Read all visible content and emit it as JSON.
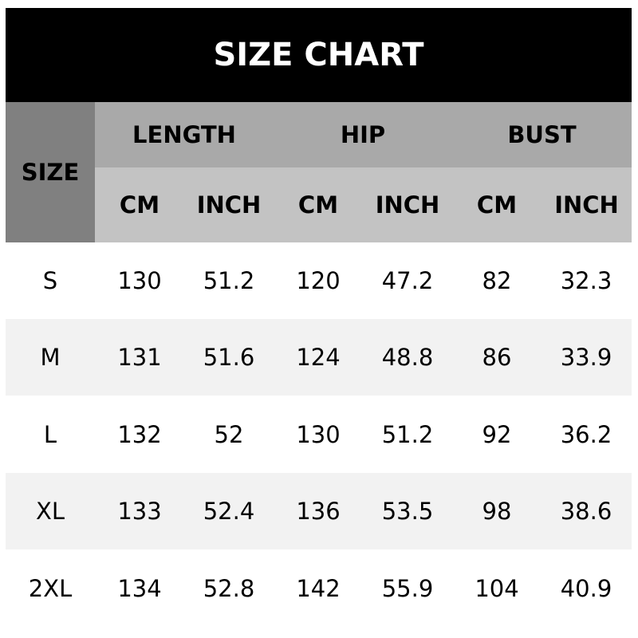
{
  "title": "SIZE CHART",
  "size_header": "SIZE",
  "groups": [
    "LENGTH",
    "HIP",
    "BUST"
  ],
  "units": [
    "CM",
    "INCH",
    "CM",
    "INCH",
    "CM",
    "INCH"
  ],
  "rows": [
    [
      "S",
      "130",
      "51.2",
      "120",
      "47.2",
      "82",
      "32.3"
    ],
    [
      "M",
      "131",
      "51.6",
      "124",
      "48.8",
      "86",
      "33.9"
    ],
    [
      "L",
      "132",
      "52",
      "130",
      "51.2",
      "92",
      "36.2"
    ],
    [
      "XL",
      "133",
      "52.4",
      "136",
      "53.5",
      "98",
      "38.6"
    ],
    [
      "2XL",
      "134",
      "52.8",
      "142",
      "55.9",
      "104",
      "40.9"
    ]
  ]
}
